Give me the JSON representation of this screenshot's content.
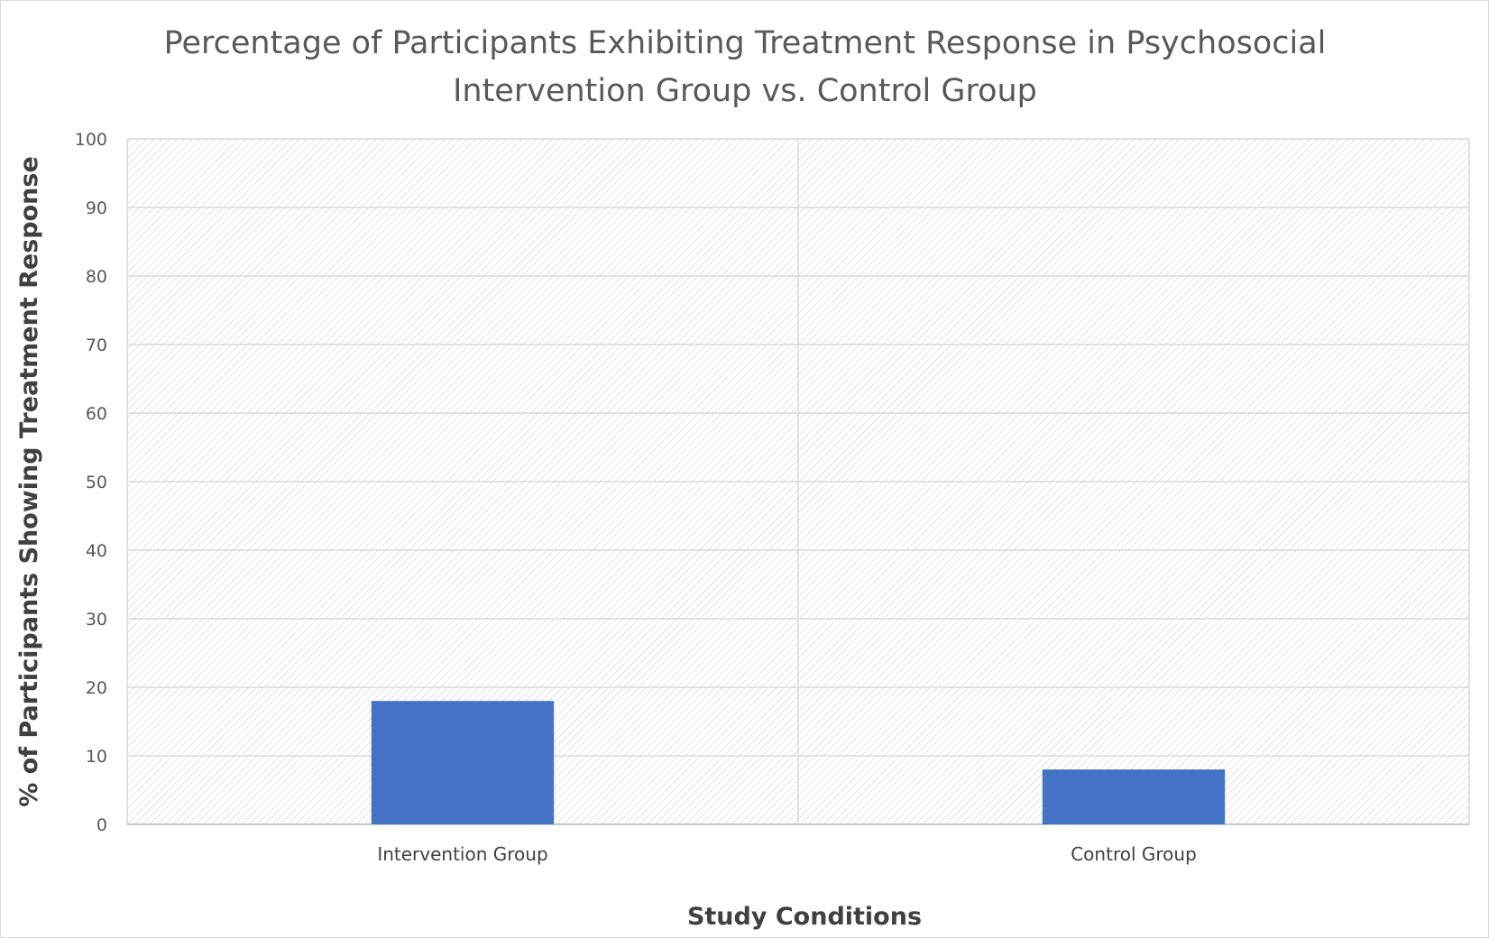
{
  "chart_data": {
    "type": "bar",
    "title_lines": [
      "Percentage of Participants Exhibiting Treatment Response in Psychosocial",
      "Intervention Group vs. Control Group"
    ],
    "xlabel": "Study Conditions",
    "ylabel": "% of Participants Showing Treatment Response",
    "categories": [
      "Intervention Group",
      "Control Group"
    ],
    "values": [
      18,
      8
    ],
    "ylim": [
      0,
      100
    ],
    "yticks": [
      "0",
      "10",
      "20",
      "30",
      "40",
      "50",
      "60",
      "70",
      "80",
      "90",
      "100"
    ],
    "grid": true,
    "legend": "none",
    "bar_color": "#4472c4",
    "grid_color": "#d9d9d9"
  }
}
